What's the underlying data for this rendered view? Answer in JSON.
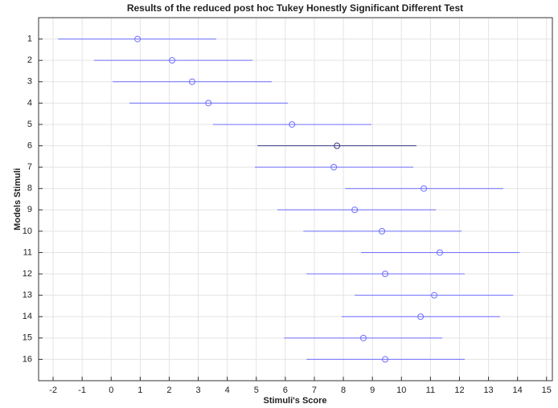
{
  "chart_data": {
    "type": "interval",
    "title": "Results of the reduced post hoc Tukey Honestly Significant Different Test",
    "x_label": "Stimuli's Score",
    "y_label": "Models Stimuli",
    "categories": [
      "1",
      "2",
      "3",
      "4",
      "5",
      "6",
      "7",
      "8",
      "9",
      "10",
      "11",
      "12",
      "13",
      "14",
      "15",
      "16"
    ],
    "series": [
      {
        "color": "#6e6eff",
        "point_colors": [
          "#6e6eff",
          "#6e6eff",
          "#6e6eff",
          "#6e6eff",
          "#6e6eff",
          "#3a3a80",
          "#6e6eff",
          "#6e6eff",
          "#6e6eff",
          "#6e6eff",
          "#6e6eff",
          "#6e6eff",
          "#6e6eff",
          "#6e6eff",
          "#6e6eff",
          "#6e6eff"
        ],
        "values": [
          0.91,
          2.1,
          2.79,
          3.35,
          6.23,
          7.78,
          7.67,
          10.77,
          8.39,
          9.33,
          11.32,
          9.44,
          11.13,
          10.66,
          8.69,
          9.44
        ],
        "lower": [
          -1.83,
          -0.59,
          0.05,
          0.63,
          3.51,
          5.04,
          4.95,
          8.06,
          5.73,
          6.62,
          8.61,
          6.73,
          8.39,
          7.94,
          5.96,
          6.73
        ],
        "upper": [
          3.62,
          4.87,
          5.53,
          6.09,
          8.97,
          10.52,
          10.41,
          13.51,
          11.19,
          12.07,
          14.07,
          12.18,
          13.85,
          13.4,
          11.41,
          12.18
        ]
      }
    ],
    "xlim": [
      -2.5,
      15.2
    ],
    "xticks": [
      -2,
      -1,
      0,
      1,
      2,
      3,
      4,
      5,
      6,
      7,
      8,
      9,
      10,
      11,
      12,
      13,
      14,
      15
    ],
    "ylim": [
      0,
      17
    ],
    "grid": true
  }
}
